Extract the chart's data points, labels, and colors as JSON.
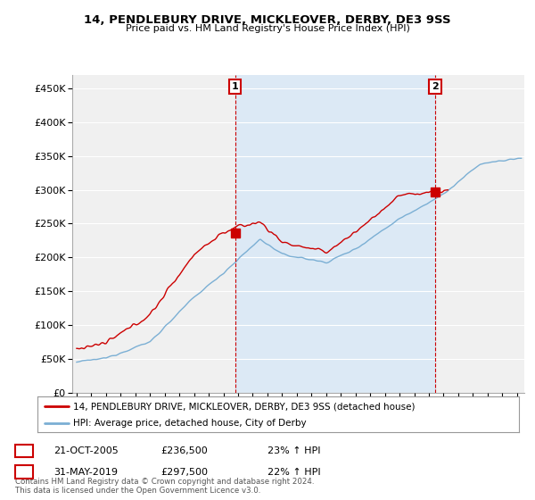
{
  "title": "14, PENDLEBURY DRIVE, MICKLEOVER, DERBY, DE3 9SS",
  "subtitle": "Price paid vs. HM Land Registry's House Price Index (HPI)",
  "ytick_values": [
    0,
    50000,
    100000,
    150000,
    200000,
    250000,
    300000,
    350000,
    400000,
    450000
  ],
  "ylim": [
    0,
    470000
  ],
  "xlim_start": 1994.7,
  "xlim_end": 2025.5,
  "sale1_x": 2005.8,
  "sale1_y": 236500,
  "sale2_x": 2019.42,
  "sale2_y": 297500,
  "vline1_x": 2005.8,
  "vline2_x": 2019.42,
  "legend_line1": "14, PENDLEBURY DRIVE, MICKLEOVER, DERBY, DE3 9SS (detached house)",
  "legend_line2": "HPI: Average price, detached house, City of Derby",
  "annotation1_date": "21-OCT-2005",
  "annotation1_price": "£236,500",
  "annotation1_hpi": "23% ↑ HPI",
  "annotation2_date": "31-MAY-2019",
  "annotation2_price": "£297,500",
  "annotation2_hpi": "22% ↑ HPI",
  "footer": "Contains HM Land Registry data © Crown copyright and database right 2024.\nThis data is licensed under the Open Government Licence v3.0.",
  "color_red": "#cc0000",
  "color_blue": "#7bafd4",
  "color_vline": "#cc0000",
  "color_shade": "#dce9f5",
  "background_plot": "#f0f0f0",
  "background_fig": "#ffffff",
  "grid_color": "#ffffff"
}
